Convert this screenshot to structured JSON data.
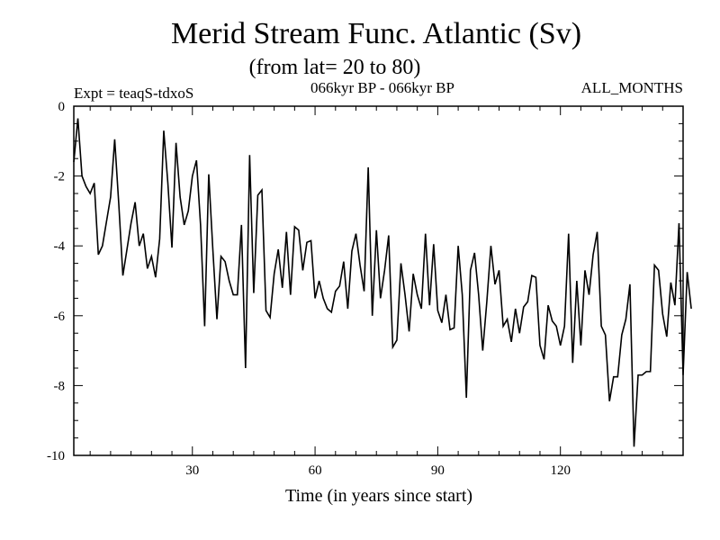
{
  "chart_data": {
    "type": "line",
    "title": "Merid Stream Func. Atlantic (Sv)",
    "subtitle": "(from lat= 20 to 80)",
    "experiment_label": "Expt = teaqS-tdxoS",
    "period_label": "066kyr BP - 066kyr BP",
    "months_label": "ALL_MONTHS",
    "xlabel": "Time (in years since start)",
    "ylabel": "",
    "xlim": [
      1,
      150
    ],
    "ylim": [
      -10,
      0
    ],
    "x_ticks": [
      30,
      60,
      90,
      120
    ],
    "x_tick_labels": [
      "30",
      "60",
      "90",
      "120"
    ],
    "y_ticks": [
      0,
      -2,
      -4,
      -6,
      -8,
      -10
    ],
    "y_tick_labels": [
      "0",
      "-2",
      "-4",
      "-6",
      "-8",
      "-10"
    ],
    "grid": false,
    "series": [
      {
        "name": "Merid Stream Func. Atlantic",
        "x_start": 1,
        "x_step": 1,
        "values": [
          -1.6,
          -0.35,
          -2.0,
          -2.3,
          -2.5,
          -2.2,
          -4.25,
          -4.0,
          -3.3,
          -2.6,
          -0.95,
          -2.8,
          -4.85,
          -4.1,
          -3.35,
          -2.75,
          -4.0,
          -3.65,
          -4.65,
          -4.3,
          -4.9,
          -3.8,
          -0.7,
          -2.2,
          -4.05,
          -1.05,
          -2.6,
          -3.4,
          -3.0,
          -2.0,
          -1.55,
          -3.4,
          -6.3,
          -1.95,
          -4.1,
          -6.1,
          -4.3,
          -4.45,
          -5.0,
          -5.4,
          -5.4,
          -3.4,
          -7.5,
          -1.4,
          -5.35,
          -2.55,
          -2.4,
          -5.85,
          -6.05,
          -4.8,
          -4.1,
          -5.2,
          -3.6,
          -5.4,
          -3.45,
          -3.55,
          -4.7,
          -3.9,
          -3.85,
          -5.5,
          -5.0,
          -5.5,
          -5.8,
          -5.9,
          -5.3,
          -5.15,
          -4.45,
          -5.8,
          -4.15,
          -3.65,
          -4.55,
          -5.3,
          -1.75,
          -6.0,
          -3.55,
          -5.5,
          -4.7,
          -3.7,
          -6.9,
          -6.7,
          -4.5,
          -5.4,
          -6.45,
          -4.8,
          -5.4,
          -5.8,
          -3.65,
          -5.7,
          -3.95,
          -5.85,
          -6.2,
          -5.4,
          -6.4,
          -6.35,
          -4.0,
          -5.4,
          -8.35,
          -4.7,
          -4.2,
          -5.4,
          -7.0,
          -5.6,
          -4.0,
          -5.1,
          -4.7,
          -6.3,
          -6.1,
          -6.75,
          -5.8,
          -6.5,
          -5.75,
          -5.6,
          -4.85,
          -4.9,
          -6.85,
          -7.25,
          -5.7,
          -6.15,
          -6.3,
          -6.85,
          -6.3,
          -3.65,
          -7.35,
          -5.0,
          -6.85,
          -4.7,
          -5.4,
          -4.25,
          -3.6,
          -6.3,
          -6.55,
          -8.45,
          -7.75,
          -7.75,
          -6.55,
          -6.1,
          -5.1,
          -9.75,
          -7.7,
          -7.7,
          -7.6,
          -7.6,
          -4.55,
          -4.7,
          -5.95,
          -6.6,
          -5.05,
          -5.7,
          -3.35,
          -7.7,
          -4.75,
          -5.8
        ]
      }
    ]
  }
}
